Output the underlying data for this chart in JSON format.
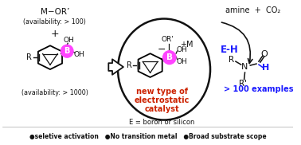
{
  "bg_color": "#ffffff",
  "red_color": "#cc2200",
  "blue_color": "#1a1aff",
  "black_color": "#111111",
  "magenta_color": "#ff44ff",
  "bottom_text": "●seletive activation   ●No transition metal   ●Broad substrate scope",
  "label_new_type": "new type of",
  "label_electrostatic": "electrostatic",
  "label_catalyst": "catalyst",
  "label_E": "E = boron or silicon",
  "label_amine_co2": "amine  +  CO₂",
  "label_EH": "E-H",
  "label_100": "> 100 examples",
  "label_avail1": "(availability: > 100)",
  "label_avail2": "(availability: > 1000)",
  "label_MOR": "M−OR’",
  "label_plus": "+",
  "figw": 3.78,
  "figh": 1.82,
  "dpi": 100
}
